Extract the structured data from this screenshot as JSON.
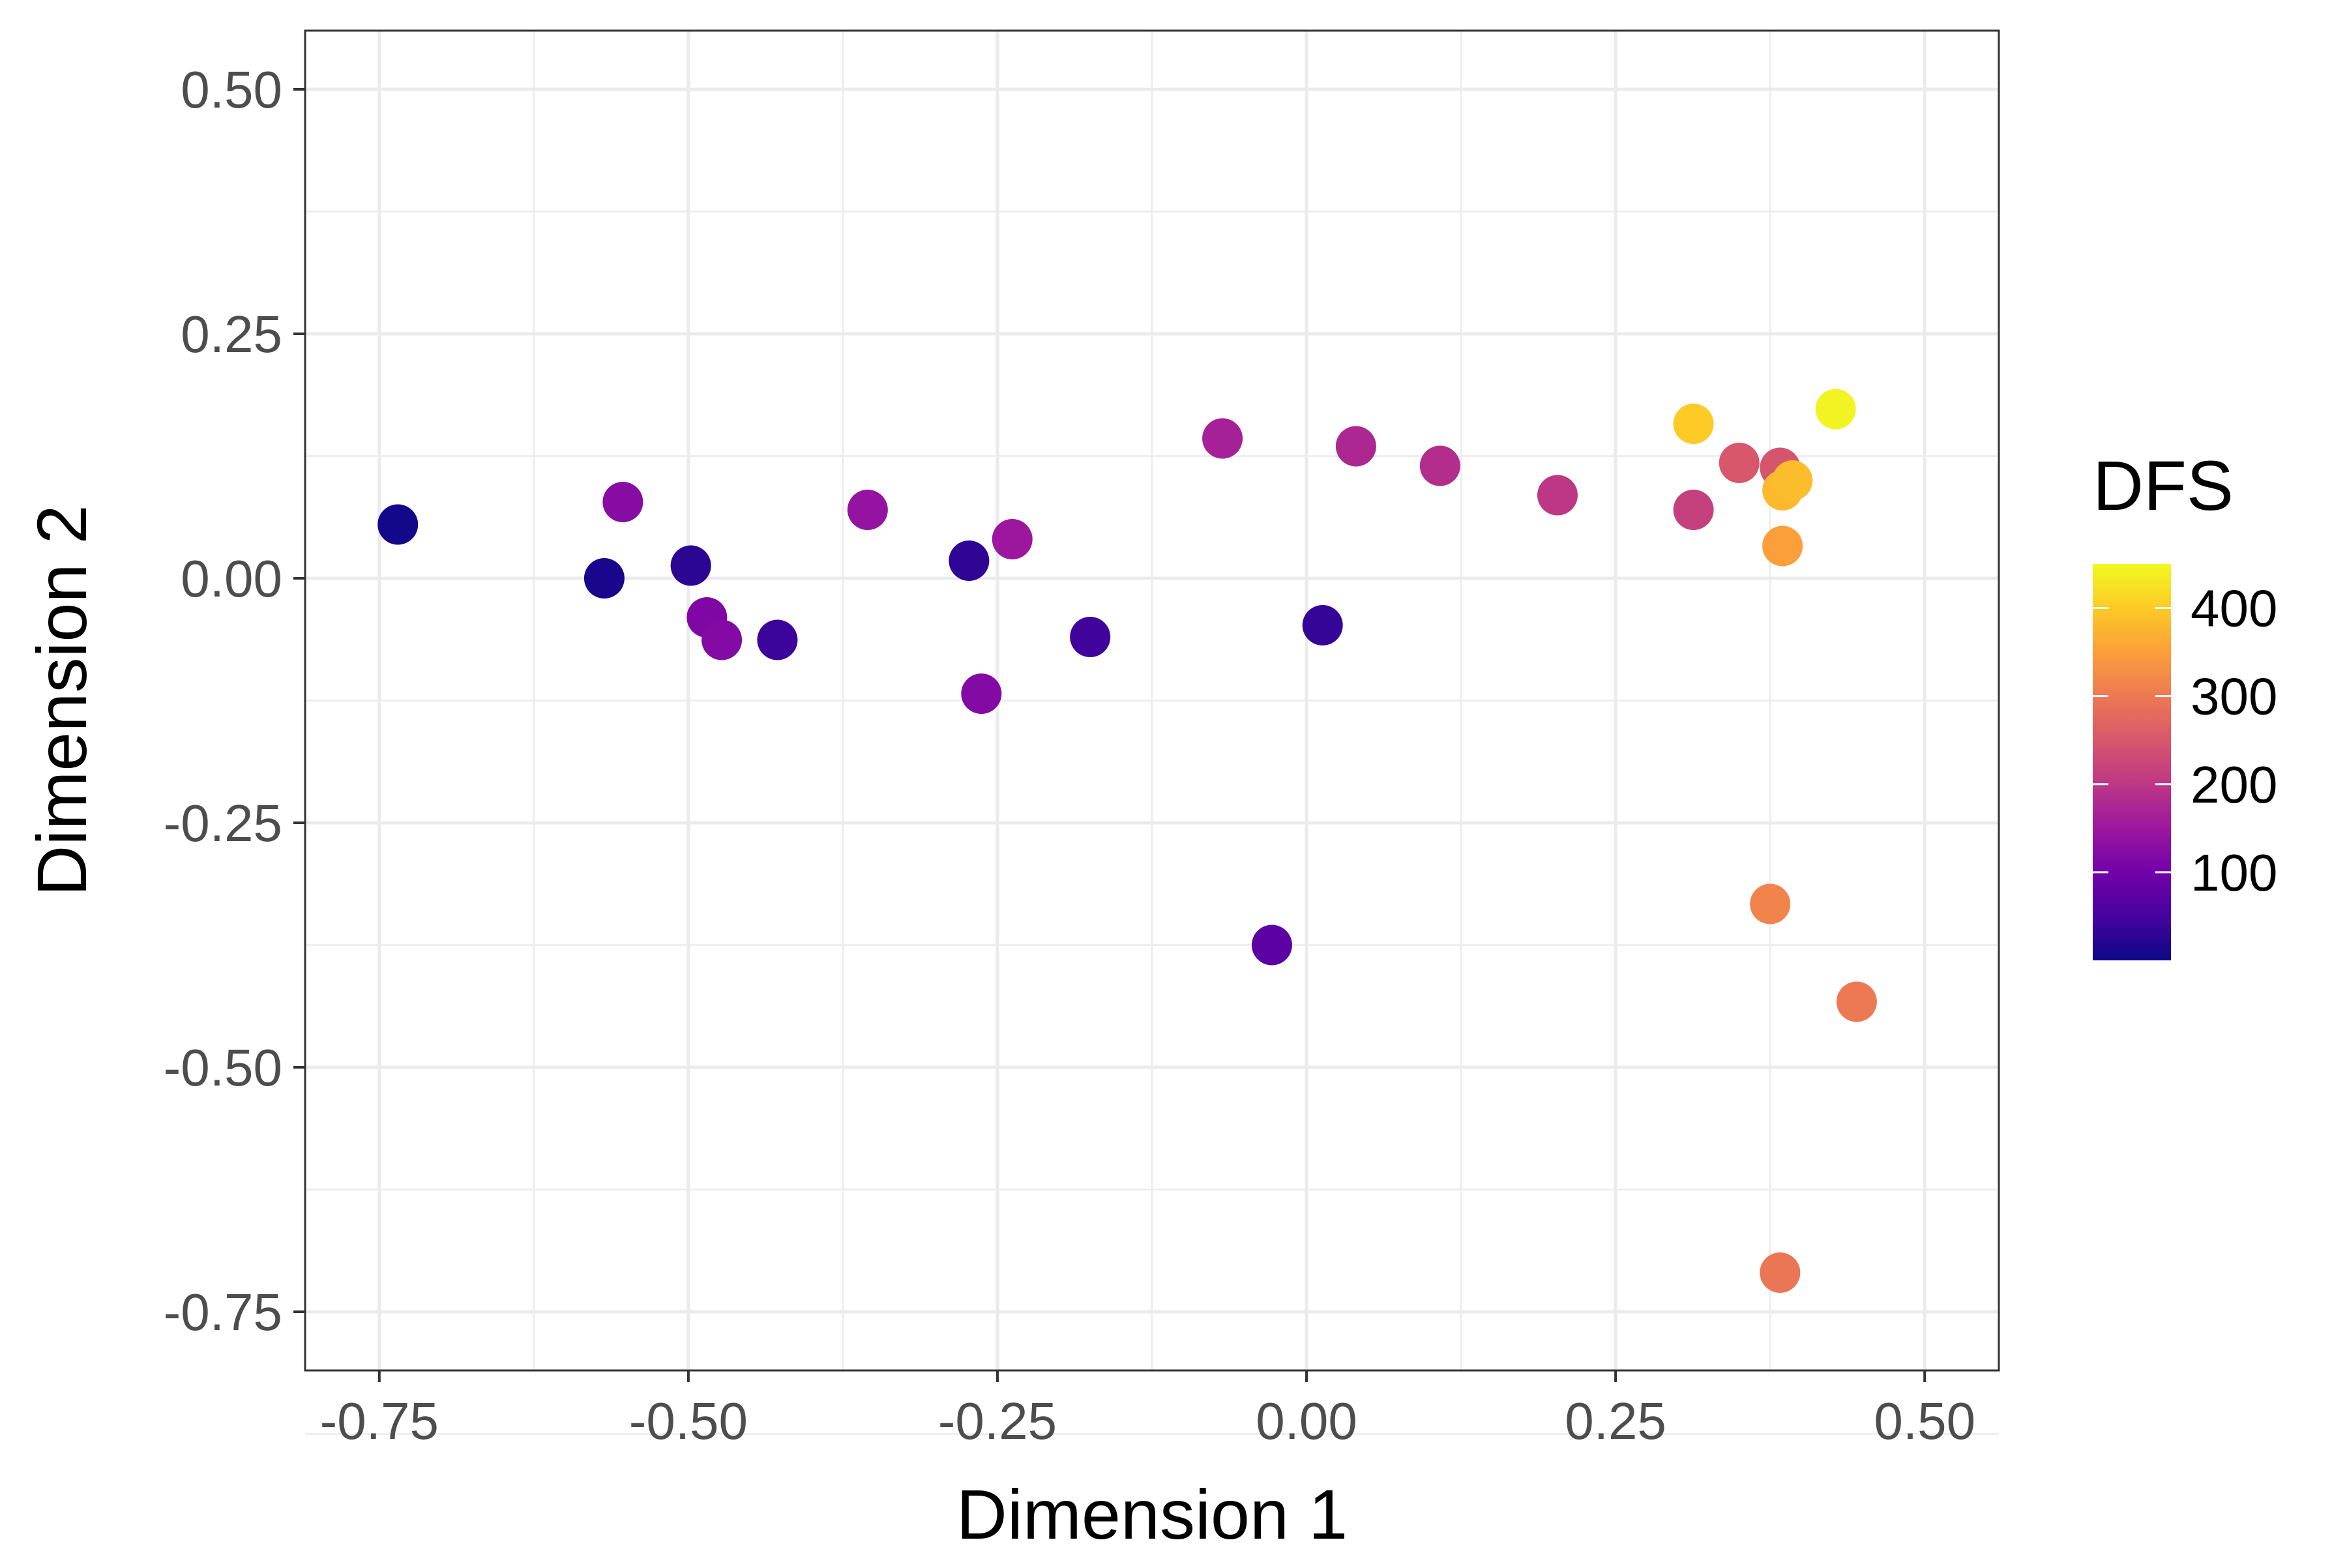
{
  "chart_data": {
    "type": "scatter",
    "title": "",
    "xlabel": "Dimension 1",
    "ylabel": "Dimension 2",
    "xlim": [
      -0.81,
      0.56
    ],
    "ylim": [
      -0.81,
      0.56
    ],
    "x_ticks": [
      -0.75,
      -0.5,
      -0.25,
      0.0,
      0.25,
      0.5
    ],
    "x_tick_labels": [
      "-0.75",
      "-0.50",
      "-0.25",
      "0.00",
      "0.25",
      "0.50"
    ],
    "y_ticks": [
      -0.75,
      -0.5,
      -0.25,
      0.0,
      0.25,
      0.5
    ],
    "y_tick_labels": [
      "-0.75",
      "-0.50",
      "-0.25",
      "0.00",
      "0.25",
      "0.50"
    ],
    "grid": true,
    "theme": "bw",
    "color_scale": {
      "title": "DFS",
      "palette": "plasma",
      "range": [
        0,
        450
      ],
      "breaks": [
        100,
        200,
        300,
        400
      ],
      "break_labels": [
        "100",
        "200",
        "300",
        "400"
      ],
      "colors": [
        "#0d0887",
        "#46039f",
        "#7201a8",
        "#9c179e",
        "#bd3786",
        "#d8576b",
        "#ed7953",
        "#fb9f3a",
        "#fdca26",
        "#f0f921"
      ]
    },
    "legend_position": "right",
    "point_color_encoding": "DFS",
    "points": [
      {
        "x": -0.735,
        "y": 0.055,
        "DFS": 5
      },
      {
        "x": -0.568,
        "y": 0.0,
        "DFS": 10
      },
      {
        "x": -0.498,
        "y": 0.013,
        "DFS": 25
      },
      {
        "x": -0.553,
        "y": 0.078,
        "DFS": 125
      },
      {
        "x": -0.485,
        "y": -0.04,
        "DFS": 115
      },
      {
        "x": -0.473,
        "y": -0.063,
        "DFS": 120
      },
      {
        "x": -0.428,
        "y": -0.063,
        "DFS": 40
      },
      {
        "x": -0.355,
        "y": 0.07,
        "DFS": 140
      },
      {
        "x": -0.273,
        "y": 0.018,
        "DFS": 30
      },
      {
        "x": -0.263,
        "y": -0.118,
        "DFS": 120
      },
      {
        "x": -0.238,
        "y": 0.04,
        "DFS": 150
      },
      {
        "x": -0.175,
        "y": -0.06,
        "DFS": 45
      },
      {
        "x": -0.068,
        "y": 0.143,
        "DFS": 165
      },
      {
        "x": -0.028,
        "y": -0.375,
        "DFS": 75
      },
      {
        "x": 0.013,
        "y": -0.048,
        "DFS": 35
      },
      {
        "x": 0.04,
        "y": 0.135,
        "DFS": 175
      },
      {
        "x": 0.108,
        "y": 0.115,
        "DFS": 185
      },
      {
        "x": 0.203,
        "y": 0.085,
        "DFS": 200
      },
      {
        "x": 0.313,
        "y": 0.07,
        "DFS": 215
      },
      {
        "x": 0.313,
        "y": 0.158,
        "DFS": 400
      },
      {
        "x": 0.35,
        "y": 0.118,
        "DFS": 250
      },
      {
        "x": 0.383,
        "y": 0.113,
        "DFS": 245
      },
      {
        "x": 0.385,
        "y": 0.09,
        "DFS": 380
      },
      {
        "x": 0.393,
        "y": 0.1,
        "DFS": 385
      },
      {
        "x": 0.385,
        "y": 0.033,
        "DFS": 350
      },
      {
        "x": 0.428,
        "y": 0.173,
        "DFS": 445
      },
      {
        "x": 0.375,
        "y": -0.333,
        "DFS": 315
      },
      {
        "x": 0.445,
        "y": -0.433,
        "DFS": 300
      },
      {
        "x": 0.383,
        "y": -0.71,
        "DFS": 295
      }
    ]
  }
}
